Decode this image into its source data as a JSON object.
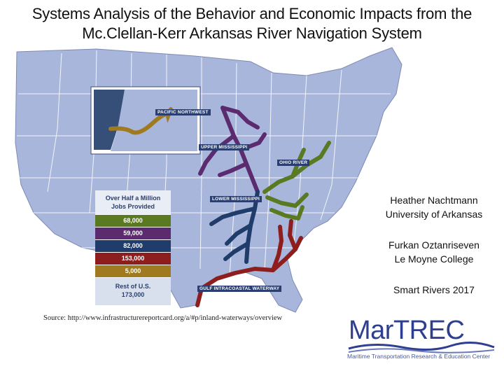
{
  "slide": {
    "title_line1": "Systems Analysis of the Behavior and Economic Impacts from the",
    "title_line2": "Mc.Clellan-Kerr Arkansas River Navigation System"
  },
  "map": {
    "image": "us-inland-waterways-map",
    "labels": {
      "pacific_northwest": "PACIFIC NORTHWEST",
      "upper_mississippi": "UPPER MISSISSIPPI",
      "ohio_river": "OHIO RIVER",
      "lower_mississippi": "LOWER MISSISSIPPI",
      "gulf": "GULF INTRACOASTAL WATERWAY"
    },
    "colors": {
      "land": "#a9b6dc",
      "states_border": "#ffffff",
      "pacific_northwest": "#a07a1e",
      "upper_mississippi": "#5c2a6e",
      "ohio_river": "#5a7a22",
      "lower_mississippi": "#1f3c6a",
      "gulf": "#8e1e1e"
    }
  },
  "legend": {
    "header_line1": "Over Half a Million",
    "header_line2": "Jobs Provided",
    "rows": [
      {
        "value": "68,000",
        "color": "#5a7a22"
      },
      {
        "value": "59,000",
        "color": "#5c2a6e"
      },
      {
        "value": "82,000",
        "color": "#1f3c6a"
      },
      {
        "value": "153,000",
        "color": "#8e1e1e"
      },
      {
        "value": "5,000",
        "color": "#a07a1e"
      }
    ],
    "rest_line1": "Rest of U.S.",
    "rest_line2": "173,000"
  },
  "authors": {
    "name1": "Heather Nachtmann",
    "affil1": "University of Arkansas",
    "name2": "Furkan Oztanriseven",
    "affil2": "Le Moyne College",
    "event": "Smart Rivers 2017"
  },
  "source": "Source: http://www.infrastructurereportcard.org/a/#p/inland-waterways/overview",
  "logo": {
    "word": "MarTREC",
    "tagline": "Maritime Transportation Research & Education Center"
  }
}
